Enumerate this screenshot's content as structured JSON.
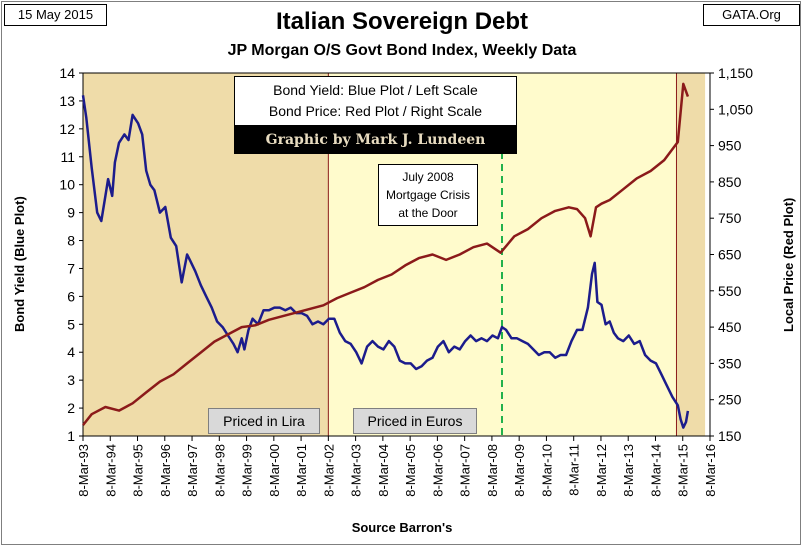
{
  "header": {
    "date": "15 May 2015",
    "source_site": "GATA.Org"
  },
  "legend": {
    "line1": "Bond Yield: Blue Plot / Left Scale",
    "line2": "Bond Price: Red Plot / Right Scale"
  },
  "credit": "Graphic by Mark J. Lundeen",
  "annotation": {
    "line1": "July  2008",
    "line2": "Mortgage Crisis",
    "line3": "at the Door"
  },
  "eras": {
    "lira": "Priced in Lira",
    "euro": "Priced in Euros"
  },
  "colors": {
    "yield": "#1c1c8c",
    "price": "#8b1a1a",
    "lira_bg": "#efdca9",
    "euro_bg": "#fffbcc",
    "crisis_line": "#22b14c"
  },
  "chart_data": {
    "type": "line",
    "title": "Italian Sovereign Debt",
    "subtitle": "JP Morgan O/S Govt Bond Index, Weekly Data",
    "xlabel": "Source Barron's",
    "ylabel": "Bond Yield   (Blue Plot)",
    "ylabel_right": "Local Price   (Red Plot)",
    "x_range": [
      1993.18,
      2016.18
    ],
    "ylim": [
      1,
      14
    ],
    "ylim_right": [
      150,
      1150
    ],
    "x_ticks": [
      1993.18,
      1994.18,
      1995.18,
      1996.18,
      1997.18,
      1998.18,
      1999.18,
      2000.18,
      2001.18,
      2002.18,
      2003.18,
      2004.18,
      2005.18,
      2006.18,
      2007.18,
      2008.18,
      2009.18,
      2010.18,
      2011.18,
      2012.18,
      2013.18,
      2014.18,
      2015.18,
      2016.18
    ],
    "x_tick_labels": [
      "8-Mar-93",
      "8-Mar-94",
      "8-Mar-95",
      "8-Mar-96",
      "8-Mar-97",
      "8-Mar-98",
      "8-Mar-99",
      "8-Mar-00",
      "8-Mar-01",
      "8-Mar-02",
      "8-Mar-03",
      "8-Mar-04",
      "8-Mar-05",
      "8-Mar-06",
      "8-Mar-07",
      "8-Mar-08",
      "8-Mar-09",
      "8-Mar-10",
      "8-Mar-11",
      "8-Mar-12",
      "8-Mar-13",
      "8-Mar-14",
      "8-Mar-15",
      "8-Mar-16"
    ],
    "y_ticks": [
      1,
      2,
      3,
      4,
      5,
      6,
      7,
      8,
      9,
      10,
      11,
      12,
      13,
      14
    ],
    "y_ticks_right": [
      150,
      250,
      350,
      450,
      550,
      650,
      750,
      850,
      950,
      1050,
      1150
    ],
    "y_ticks_right_labels": [
      "150",
      "250",
      "350",
      "450",
      "550",
      "650",
      "750",
      "850",
      "950",
      "1,050",
      "1,150"
    ],
    "regions": [
      {
        "name": "lira",
        "from": 1993.18,
        "to": 2002.18
      },
      {
        "name": "euro",
        "from": 2002.18,
        "to": 2014.95
      },
      {
        "name": "recent",
        "from": 2014.95,
        "to": 2016.0
      }
    ],
    "crisis_marker_x": 2008.55,
    "series": [
      {
        "name": "Bond Yield",
        "axis": "left",
        "x": [
          1993.18,
          1993.3,
          1993.5,
          1993.7,
          1993.85,
          1994.0,
          1994.1,
          1994.25,
          1994.35,
          1994.5,
          1994.7,
          1994.85,
          1995.0,
          1995.2,
          1995.35,
          1995.5,
          1995.65,
          1995.8,
          1996.0,
          1996.2,
          1996.4,
          1996.6,
          1996.8,
          1997.0,
          1997.1,
          1997.3,
          1997.5,
          1997.7,
          1997.9,
          1998.1,
          1998.3,
          1998.5,
          1998.7,
          1998.85,
          1999.0,
          1999.1,
          1999.25,
          1999.4,
          1999.6,
          1999.8,
          2000.0,
          2000.2,
          2000.4,
          2000.6,
          2000.8,
          2001.0,
          2001.2,
          2001.4,
          2001.6,
          2001.8,
          2002.0,
          2002.2,
          2002.4,
          2002.6,
          2002.8,
          2003.0,
          2003.2,
          2003.4,
          2003.6,
          2003.8,
          2004.0,
          2004.2,
          2004.4,
          2004.6,
          2004.8,
          2005.0,
          2005.2,
          2005.4,
          2005.6,
          2005.8,
          2006.0,
          2006.2,
          2006.4,
          2006.6,
          2006.8,
          2007.0,
          2007.2,
          2007.4,
          2007.6,
          2007.8,
          2008.0,
          2008.2,
          2008.4,
          2008.55,
          2008.7,
          2008.9,
          2009.1,
          2009.3,
          2009.5,
          2009.7,
          2009.9,
          2010.1,
          2010.3,
          2010.5,
          2010.7,
          2010.9,
          2011.1,
          2011.3,
          2011.5,
          2011.7,
          2011.85,
          2011.95,
          2012.05,
          2012.2,
          2012.35,
          2012.5,
          2012.65,
          2012.8,
          2013.0,
          2013.2,
          2013.4,
          2013.6,
          2013.8,
          2014.0,
          2014.2,
          2014.4,
          2014.6,
          2014.8,
          2015.0,
          2015.1,
          2015.2,
          2015.3,
          2015.37
        ],
        "values": [
          13.2,
          12.4,
          10.6,
          9.0,
          8.7,
          9.6,
          10.2,
          9.6,
          10.8,
          11.5,
          11.8,
          11.6,
          12.5,
          12.2,
          11.8,
          10.5,
          10.0,
          9.8,
          9.0,
          9.2,
          8.1,
          7.8,
          6.5,
          7.5,
          7.3,
          6.9,
          6.4,
          6.0,
          5.6,
          5.1,
          4.9,
          4.6,
          4.3,
          4.0,
          4.5,
          4.1,
          4.8,
          5.2,
          5.0,
          5.5,
          5.5,
          5.6,
          5.6,
          5.5,
          5.6,
          5.4,
          5.4,
          5.3,
          5.0,
          5.1,
          5.0,
          5.2,
          5.2,
          4.7,
          4.4,
          4.3,
          4.0,
          3.6,
          4.2,
          4.4,
          4.2,
          4.1,
          4.4,
          4.2,
          3.7,
          3.6,
          3.6,
          3.4,
          3.5,
          3.7,
          3.8,
          4.2,
          4.4,
          4.0,
          4.2,
          4.1,
          4.4,
          4.6,
          4.4,
          4.5,
          4.4,
          4.6,
          4.5,
          4.9,
          4.8,
          4.5,
          4.5,
          4.4,
          4.3,
          4.1,
          3.9,
          4.0,
          4.0,
          3.8,
          3.9,
          3.9,
          4.4,
          4.8,
          4.8,
          5.6,
          6.8,
          7.2,
          5.8,
          5.7,
          5.0,
          5.1,
          4.7,
          4.5,
          4.4,
          4.6,
          4.3,
          4.4,
          3.9,
          3.7,
          3.6,
          3.2,
          2.8,
          2.4,
          2.1,
          1.6,
          1.3,
          1.5,
          1.9
        ]
      },
      {
        "name": "Bond Price",
        "axis": "right",
        "x": [
          1993.18,
          1993.5,
          1994.0,
          1994.5,
          1995.0,
          1995.5,
          1996.0,
          1996.5,
          1997.0,
          1997.5,
          1998.0,
          1998.5,
          1999.0,
          1999.5,
          2000.0,
          2000.5,
          2001.0,
          2001.5,
          2002.0,
          2002.5,
          2003.0,
          2003.5,
          2004.0,
          2004.5,
          2005.0,
          2005.5,
          2006.0,
          2006.5,
          2007.0,
          2007.5,
          2008.0,
          2008.5,
          2009.0,
          2009.5,
          2010.0,
          2010.5,
          2011.0,
          2011.3,
          2011.6,
          2011.8,
          2012.0,
          2012.2,
          2012.5,
          2013.0,
          2013.5,
          2014.0,
          2014.5,
          2015.0,
          2015.2,
          2015.37
        ],
        "values": [
          180,
          210,
          230,
          220,
          240,
          270,
          300,
          320,
          350,
          380,
          410,
          430,
          450,
          455,
          470,
          480,
          490,
          500,
          510,
          530,
          545,
          560,
          580,
          595,
          620,
          640,
          650,
          635,
          650,
          670,
          680,
          655,
          700,
          720,
          750,
          770,
          780,
          775,
          750,
          700,
          780,
          790,
          800,
          830,
          860,
          880,
          910,
          960,
          1120,
          1085
        ]
      }
    ]
  }
}
